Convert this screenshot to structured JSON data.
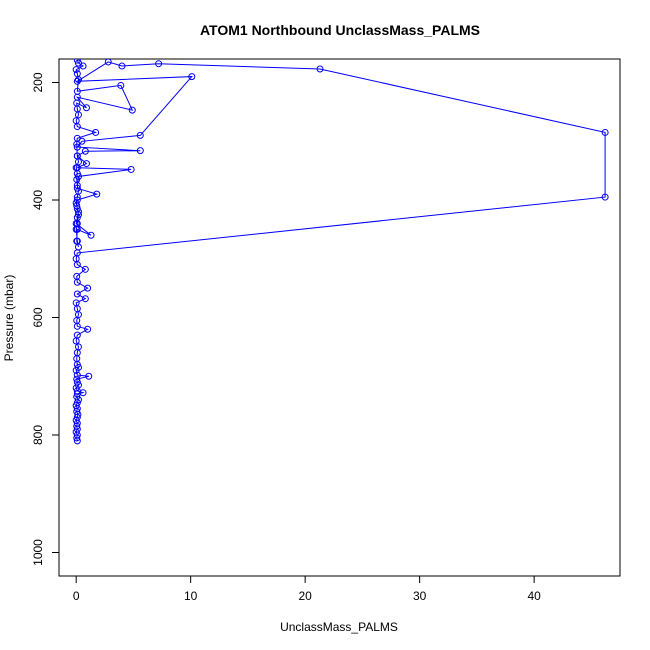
{
  "chart_data": {
    "type": "line",
    "title": "ATOM1 Northbound UnclassMass_PALMS",
    "xlabel": "UnclassMass_PALMS",
    "ylabel": "Pressure (mbar)",
    "xlim": [
      -1.5,
      47.5
    ],
    "ylim": [
      1040,
      160
    ],
    "y_reversed": true,
    "x_ticks": [
      0,
      10,
      20,
      30,
      40
    ],
    "x_tick_labels": [
      "0",
      "10",
      "20",
      "30",
      "40"
    ],
    "y_ticks": [
      200,
      400,
      600,
      800,
      1000
    ],
    "y_tick_labels": [
      "200",
      "400",
      "600",
      "800",
      "1000"
    ],
    "grid": false,
    "legend": "none",
    "colors": {
      "series": "#0000ff",
      "axis": "#000000"
    },
    "series": [
      {
        "marker": "open-circle",
        "points": [
          [
            0.1,
            810
          ],
          [
            0.05,
            805
          ],
          [
            0.1,
            800
          ],
          [
            0.0,
            795
          ],
          [
            0.1,
            790
          ],
          [
            0.05,
            785
          ],
          [
            0.1,
            780
          ],
          [
            0.0,
            775
          ],
          [
            0.1,
            770
          ],
          [
            0.15,
            765
          ],
          [
            0.05,
            760
          ],
          [
            0.1,
            755
          ],
          [
            0.0,
            750
          ],
          [
            0.1,
            745
          ],
          [
            0.2,
            740
          ],
          [
            0.05,
            735
          ],
          [
            0.1,
            730
          ],
          [
            0.6,
            728
          ],
          [
            0.1,
            725
          ],
          [
            0.0,
            720
          ],
          [
            0.2,
            715
          ],
          [
            0.1,
            710
          ],
          [
            0.05,
            705
          ],
          [
            1.1,
            700
          ],
          [
            0.1,
            698
          ],
          [
            0.0,
            690
          ],
          [
            0.2,
            685
          ],
          [
            0.1,
            680
          ],
          [
            0.05,
            670
          ],
          [
            0.1,
            660
          ],
          [
            0.2,
            650
          ],
          [
            0.0,
            640
          ],
          [
            0.1,
            630
          ],
          [
            1.0,
            620
          ],
          [
            0.1,
            615
          ],
          [
            0.05,
            605
          ],
          [
            0.2,
            595
          ],
          [
            0.1,
            585
          ],
          [
            0.0,
            575
          ],
          [
            0.8,
            568
          ],
          [
            0.1,
            560
          ],
          [
            1.0,
            550
          ],
          [
            0.1,
            540
          ],
          [
            0.05,
            530
          ],
          [
            0.8,
            518
          ],
          [
            0.1,
            510
          ],
          [
            0.0,
            500
          ],
          [
            0.1,
            490
          ],
          [
            46.2,
            395
          ],
          [
            46.2,
            285
          ],
          [
            21.3,
            177
          ],
          [
            7.2,
            168
          ],
          [
            4.0,
            172
          ],
          [
            2.8,
            165
          ],
          [
            0.1,
            198
          ],
          [
            10.1,
            190
          ],
          [
            5.6,
            290
          ],
          [
            0.5,
            300
          ],
          [
            0.1,
            310
          ],
          [
            5.6,
            316
          ],
          [
            0.8,
            317
          ],
          [
            0.1,
            325
          ],
          [
            0.9,
            338
          ],
          [
            0.1,
            345
          ],
          [
            4.8,
            348
          ],
          [
            0.2,
            360
          ],
          [
            0.1,
            380
          ],
          [
            1.8,
            390
          ],
          [
            0.1,
            400
          ],
          [
            0.05,
            410
          ],
          [
            0.2,
            420
          ],
          [
            0.1,
            430
          ],
          [
            0.0,
            440
          ],
          [
            1.3,
            460
          ],
          [
            0.1,
            450
          ],
          [
            0.05,
            470
          ],
          [
            0.2,
            480
          ],
          [
            0.1,
            470
          ],
          [
            0.0,
            450
          ],
          [
            0.1,
            440
          ],
          [
            0.2,
            425
          ],
          [
            0.1,
            415
          ],
          [
            0.0,
            405
          ],
          [
            0.1,
            395
          ],
          [
            0.2,
            385
          ],
          [
            0.1,
            375
          ],
          [
            0.05,
            365
          ],
          [
            0.1,
            355
          ],
          [
            0.0,
            345
          ],
          [
            0.2,
            335
          ],
          [
            0.1,
            325
          ],
          [
            0.05,
            305
          ],
          [
            0.1,
            295
          ],
          [
            1.7,
            285
          ],
          [
            0.1,
            275
          ],
          [
            0.0,
            265
          ],
          [
            0.2,
            255
          ],
          [
            0.1,
            245
          ],
          [
            0.05,
            235
          ],
          [
            0.9,
            243
          ],
          [
            0.1,
            225
          ],
          [
            4.9,
            247
          ],
          [
            3.9,
            205
          ],
          [
            0.1,
            215
          ],
          [
            0.2,
            195
          ],
          [
            0.1,
            185
          ],
          [
            0.0,
            178
          ],
          [
            0.6,
            172
          ],
          [
            0.2,
            167
          ],
          [
            0.1,
            162
          ]
        ]
      }
    ]
  }
}
